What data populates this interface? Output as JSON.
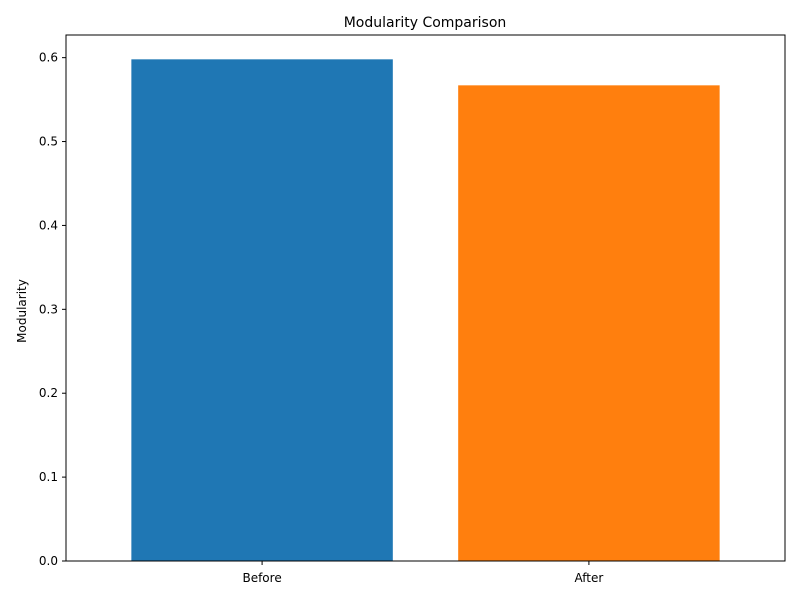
{
  "chart_data": {
    "type": "bar",
    "title": "Modularity Comparison",
    "xlabel": "",
    "ylabel": "Modularity",
    "categories": [
      "Before",
      "After"
    ],
    "values": [
      0.598,
      0.567
    ],
    "colors": [
      "#1f77b4",
      "#ff7f0e"
    ],
    "ylim": [
      0,
      0.627
    ],
    "yticks": [
      0.0,
      0.1,
      0.2,
      0.3,
      0.4,
      0.5,
      0.6
    ],
    "ytick_labels": [
      "0.0",
      "0.1",
      "0.2",
      "0.3",
      "0.4",
      "0.5",
      "0.6"
    ],
    "grid": false,
    "legend": "none"
  }
}
